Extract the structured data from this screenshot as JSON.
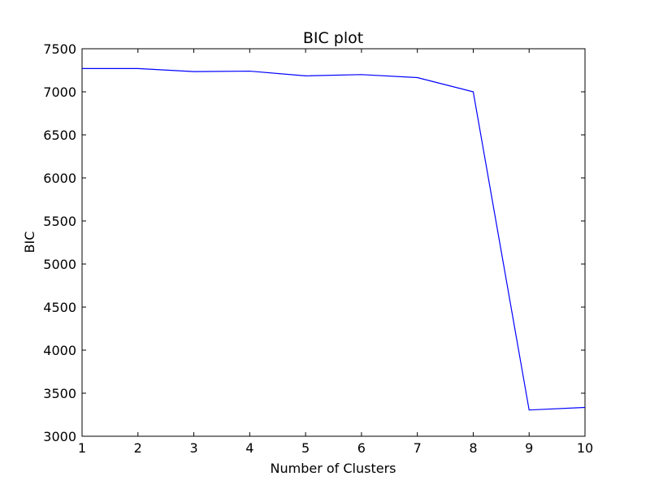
{
  "chart_data": {
    "type": "line",
    "title": "BIC plot",
    "xlabel": "Number of Clusters",
    "ylabel": "BIC",
    "xlim": [
      1,
      10
    ],
    "ylim": [
      3000,
      7500
    ],
    "x_ticks": [
      1,
      2,
      3,
      4,
      5,
      6,
      7,
      8,
      9,
      10
    ],
    "y_ticks": [
      3000,
      3500,
      4000,
      4500,
      5000,
      5500,
      6000,
      6500,
      7000,
      7500
    ],
    "grid": false,
    "series": [
      {
        "color": "#0000ff",
        "x": [
          1,
          2,
          3,
          4,
          5,
          6,
          7,
          8,
          9,
          10
        ],
        "y": [
          7270,
          7270,
          7235,
          7240,
          7185,
          7200,
          7165,
          7000,
          3305,
          3335
        ]
      }
    ]
  }
}
